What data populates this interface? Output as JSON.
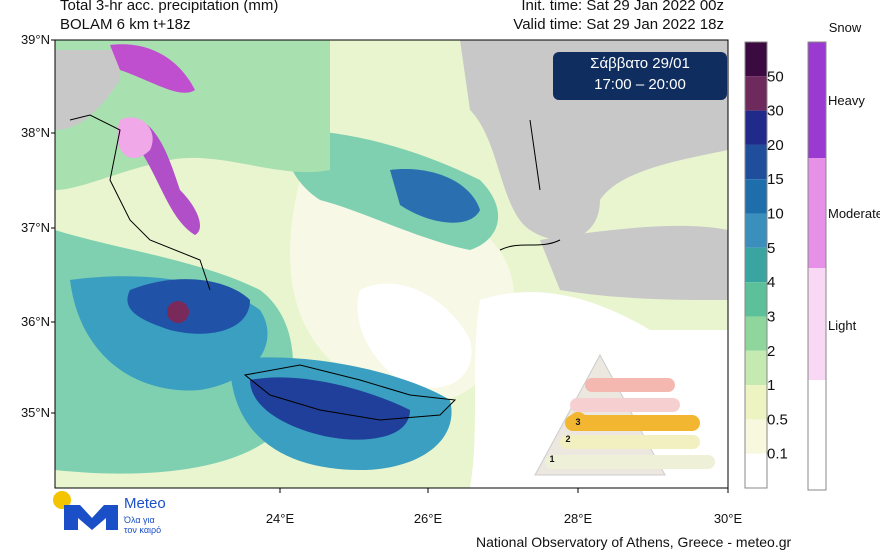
{
  "header": {
    "title": "Total 3-hr acc. precipitation (mm)",
    "model": "BOLAM 6 km t+18z",
    "init_time": "Init. time: Sat 29 Jan 2022 00z",
    "valid_time": "Valid time: Sat 29 Jan 2022 18z"
  },
  "time_box": {
    "day": "Σάββατο  29/01",
    "hours": "17:00 – 20:00"
  },
  "axes": {
    "latitudes": [
      "39°N",
      "38°N",
      "37°N",
      "36°N",
      "35°N"
    ],
    "longitudes": [
      "24°E",
      "26°E",
      "28°E",
      "30°E"
    ]
  },
  "precip_scale": {
    "labels": [
      50,
      30,
      20,
      15,
      10,
      5,
      4,
      3,
      2,
      1,
      0.5,
      0.1
    ]
  },
  "snow_scale": {
    "title": "Snow",
    "levels": [
      "Heavy",
      "Moderate",
      "Light"
    ]
  },
  "logo": {
    "name": "Meteo",
    "tagline_1": "Όλα για",
    "tagline_2": "τον καιρό"
  },
  "warning_levels": [
    "3",
    "2",
    "1"
  ],
  "footer": "National Observatory of Athens, Greece - meteo.gr"
}
